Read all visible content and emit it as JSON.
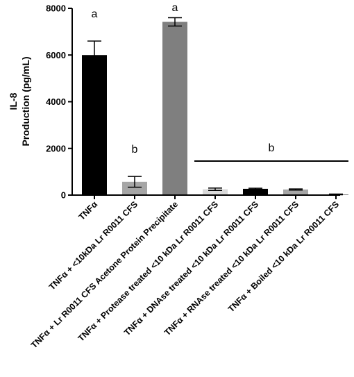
{
  "chart_data": {
    "type": "bar",
    "ylabel_line1": "IL-8",
    "ylabel_line2": "Production (pg/mL)",
    "ylim": [
      0,
      8000
    ],
    "yticks": [
      0,
      2000,
      4000,
      6000,
      8000
    ],
    "grid": false,
    "legend": "none",
    "categories": [
      "TNFα",
      "TNFα + <10kDa Lr R0011 CFS",
      "TNFα + Lr R0011 CFS Acetone Protein Precipitate",
      "TNFα + Protease treated <10 kDa Lr R0011 CFS",
      "TNFα + DNAse treated <10 kDa  Lr R0011 CFS",
      "TNFα + RNAse treated <10 kDa  Lr R0011 CFS",
      "TNFα + Boiled <10 kDa Lr R0011 CFS"
    ],
    "values": [
      6000,
      570,
      7420,
      250,
      270,
      240,
      30
    ],
    "errors": [
      600,
      230,
      180,
      50,
      25,
      25,
      15
    ],
    "bar_colors": [
      "#000000",
      "#a6a6a6",
      "#7f7f7f",
      "#d9d9d9",
      "#000000",
      "#a6a6a6",
      "#7f7f7f"
    ],
    "annotations": [
      {
        "text": "a",
        "category_index": 0
      },
      {
        "text": "b",
        "category_index": 1
      },
      {
        "text": "a",
        "category_index": 2
      },
      {
        "text": "b",
        "span_from_index": 3,
        "span_to_index": 6
      }
    ]
  }
}
